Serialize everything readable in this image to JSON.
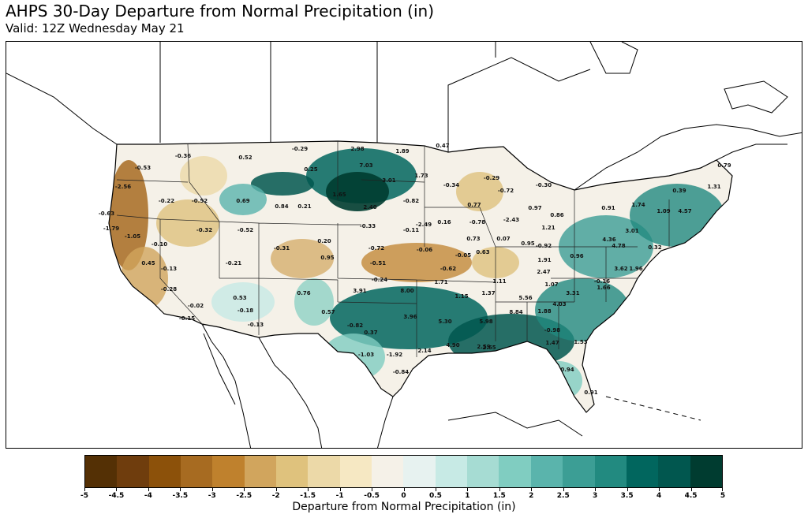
{
  "title": "AHPS 30-Day Departure from Normal Precipitation (in)",
  "subtitle": "Valid: 12Z Wednesday May 21",
  "colorbar": {
    "label": "Departure from Normal Precipitation (in)",
    "ticks": [
      "-5",
      "-4.5",
      "-4",
      "-3.5",
      "-3",
      "-2.5",
      "-2",
      "-1.5",
      "-1",
      "-0.5",
      "0",
      "0.5",
      "1",
      "1.5",
      "2",
      "2.5",
      "3",
      "3.5",
      "4",
      "4.5",
      "5"
    ],
    "colors": [
      "#543005",
      "#6f3d0d",
      "#8c510a",
      "#a76b21",
      "#bf812d",
      "#d1a55d",
      "#dfc27d",
      "#ecd9a8",
      "#f6e8c3",
      "#f5f1e8",
      "#e7f2f0",
      "#c7eae5",
      "#a6dcd3",
      "#80cdc1",
      "#5ab4ac",
      "#3c9e95",
      "#228a80",
      "#01665e",
      "#01574f",
      "#003c30"
    ]
  },
  "map_labels": [
    {
      "text": "-0.29"
    },
    {
      "text": "2.98"
    },
    {
      "text": "1.89"
    },
    {
      "text": "0.47"
    },
    {
      "text": "-0.36"
    },
    {
      "text": "0.52"
    },
    {
      "text": "7.03"
    },
    {
      "text": "1.73"
    },
    {
      "text": "-0.53"
    },
    {
      "text": "0.25"
    },
    {
      "text": "3.01"
    },
    {
      "text": "-0.34"
    },
    {
      "text": "-0.29"
    },
    {
      "text": "-0.30"
    },
    {
      "text": "0.79"
    },
    {
      "text": "-2.56"
    },
    {
      "text": "1.65"
    },
    {
      "text": "-0.72"
    },
    {
      "text": "-0.82"
    },
    {
      "text": "0.39"
    },
    {
      "text": "1.31"
    },
    {
      "text": "-0.22"
    },
    {
      "text": "-0.52"
    },
    {
      "text": "0.69"
    },
    {
      "text": "0.84"
    },
    {
      "text": "0.21"
    },
    {
      "text": "2.40"
    },
    {
      "text": "0.77"
    },
    {
      "text": "0.97"
    },
    {
      "text": "0.86"
    },
    {
      "text": "0.91"
    },
    {
      "text": "1.74"
    },
    {
      "text": "1.09"
    },
    {
      "text": "4.57"
    },
    {
      "text": "-0.63"
    },
    {
      "text": "-0.33"
    },
    {
      "text": "-2.49"
    },
    {
      "text": "0.16"
    },
    {
      "text": "-0.78"
    },
    {
      "text": "-2.43"
    },
    {
      "text": "1.21"
    },
    {
      "text": "-1.79"
    },
    {
      "text": "-0.32"
    },
    {
      "text": "-0.52"
    },
    {
      "text": "-0.11"
    },
    {
      "text": "-1.05"
    },
    {
      "text": "0.20"
    },
    {
      "text": "0.73"
    },
    {
      "text": "0.07"
    },
    {
      "text": "-0.10"
    },
    {
      "text": "-0.31"
    },
    {
      "text": "-0.72"
    },
    {
      "text": "-0.06"
    },
    {
      "text": "0.95"
    },
    {
      "text": "-0.92"
    },
    {
      "text": "0.96"
    },
    {
      "text": "0.45"
    },
    {
      "text": "-0.21"
    },
    {
      "text": "0.95"
    },
    {
      "text": "-0.51"
    },
    {
      "text": "-0.05"
    },
    {
      "text": "0.63"
    },
    {
      "text": "1.91"
    },
    {
      "text": "-0.13"
    },
    {
      "text": "-0.62"
    },
    {
      "text": "2.47"
    },
    {
      "text": "-0.24"
    },
    {
      "text": "1.71"
    },
    {
      "text": "1.11"
    },
    {
      "text": "1.07"
    },
    {
      "text": "-0.16"
    },
    {
      "text": "-0.28"
    },
    {
      "text": "0.53"
    },
    {
      "text": "0.76"
    },
    {
      "text": "3.91"
    },
    {
      "text": "8.00"
    },
    {
      "text": "1.15"
    },
    {
      "text": "1.37"
    },
    {
      "text": "5.56"
    },
    {
      "text": "3.31"
    },
    {
      "text": "-0.02"
    },
    {
      "text": "-0.18"
    },
    {
      "text": "0.57"
    },
    {
      "text": "4.03"
    },
    {
      "text": "-0.15"
    },
    {
      "text": "-0.13"
    },
    {
      "text": "-0.82"
    },
    {
      "text": "3.96"
    },
    {
      "text": "5.30"
    },
    {
      "text": "5.98"
    },
    {
      "text": "8.84"
    },
    {
      "text": "1.88"
    },
    {
      "text": "0.37"
    },
    {
      "text": "-0.98"
    },
    {
      "text": "2.65"
    },
    {
      "text": "1.47"
    },
    {
      "text": "-1.03"
    },
    {
      "text": "-1.92"
    },
    {
      "text": "2.14"
    },
    {
      "text": "4.90"
    },
    {
      "text": "2.59"
    },
    {
      "text": "1.53"
    },
    {
      "text": "-0.84"
    },
    {
      "text": "0.94"
    },
    {
      "text": "0.91"
    },
    {
      "text": "4.36"
    },
    {
      "text": "1.66"
    },
    {
      "text": "3.01"
    },
    {
      "text": "3.62"
    },
    {
      "text": "4.78"
    },
    {
      "text": "0.32"
    },
    {
      "text": "1.96"
    }
  ]
}
